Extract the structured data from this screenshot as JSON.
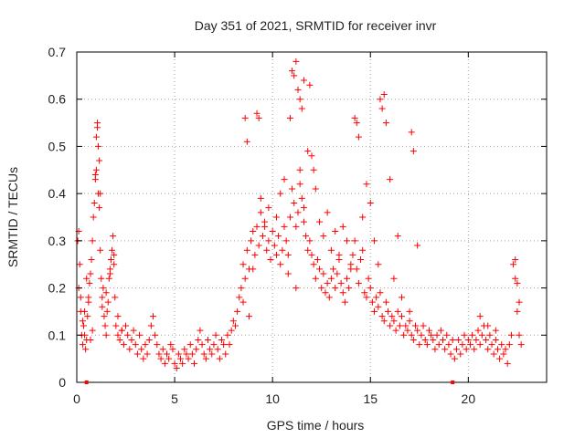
{
  "chart_data": {
    "type": "scatter",
    "title": "Day 351 of 2021, SRMTID for receiver invr",
    "xlabel": "GPS time / hours",
    "ylabel": "SRMTID / TECUs",
    "xlim": [
      0,
      24
    ],
    "ylim": [
      0,
      0.7
    ],
    "x_ticks": [
      0,
      5,
      10,
      15,
      20
    ],
    "y_ticks": [
      0,
      0.1,
      0.2,
      0.3,
      0.4,
      0.5,
      0.6,
      0.7
    ],
    "x_tick_labels": [
      "0",
      "5",
      "10",
      "15",
      "20"
    ],
    "y_tick_labels": [
      "0",
      "0.1",
      "0.2",
      "0.3",
      "0.4",
      "0.5",
      "0.6",
      "0.7"
    ],
    "grid": true,
    "marker": "+",
    "color": "#ff0000",
    "gap_markers_x": [
      0.5,
      19.2
    ],
    "series": [
      {
        "name": "SRMTID",
        "x": [
          0.05,
          0.1,
          0.15,
          0.2,
          0.25,
          0.3,
          0.35,
          0.4,
          0.45,
          0.5,
          0.55,
          0.6,
          0.65,
          0.7,
          0.75,
          0.8,
          0.85,
          0.9,
          0.95,
          1.0,
          1.05,
          1.1,
          1.15,
          1.2,
          1.25,
          1.3,
          1.35,
          1.4,
          1.45,
          1.5,
          1.55,
          1.6,
          1.65,
          1.7,
          1.75,
          1.8,
          1.85,
          1.9,
          1.95,
          2.0,
          2.1,
          2.2,
          2.3,
          2.4,
          2.5,
          2.6,
          2.7,
          2.8,
          2.9,
          3.0,
          3.1,
          3.2,
          3.3,
          3.4,
          3.5,
          3.6,
          3.7,
          3.8,
          3.9,
          4.0,
          4.1,
          4.2,
          4.3,
          4.4,
          4.5,
          4.6,
          4.7,
          4.8,
          4.9,
          5.0,
          5.1,
          5.2,
          5.3,
          5.4,
          5.5,
          5.6,
          5.7,
          5.8,
          5.9,
          6.0,
          6.1,
          6.2,
          6.3,
          6.4,
          6.5,
          6.6,
          6.7,
          6.8,
          6.9,
          7.0,
          7.1,
          7.2,
          7.3,
          7.4,
          7.5,
          7.6,
          7.7,
          7.8,
          7.9,
          8.0,
          8.1,
          8.2,
          8.3,
          8.4,
          8.5,
          8.6,
          8.7,
          8.8,
          8.9,
          9.0,
          9.1,
          9.2,
          9.3,
          9.4,
          9.5,
          9.6,
          9.7,
          9.8,
          9.9,
          10.0,
          10.1,
          10.2,
          10.3,
          10.4,
          10.5,
          10.6,
          10.7,
          10.8,
          10.9,
          11.0,
          11.1,
          11.2,
          11.3,
          11.4,
          11.5,
          11.6,
          11.7,
          11.8,
          11.9,
          12.0,
          12.1,
          12.2,
          12.3,
          12.4,
          12.5,
          12.6,
          12.7,
          12.8,
          12.9,
          13.0,
          13.1,
          13.2,
          13.3,
          13.4,
          13.5,
          13.6,
          13.7,
          13.8,
          13.9,
          14.0,
          14.1,
          14.2,
          14.3,
          14.4,
          14.5,
          14.6,
          14.7,
          14.8,
          14.9,
          15.0,
          15.1,
          15.2,
          15.3,
          15.4,
          15.5,
          15.6,
          15.7,
          15.8,
          15.9,
          16.0,
          16.1,
          16.2,
          16.3,
          16.4,
          16.5,
          16.6,
          16.7,
          16.8,
          16.9,
          17.0,
          17.1,
          17.2,
          17.3,
          17.4,
          17.5,
          17.6,
          17.7,
          17.8,
          17.9,
          18.0,
          18.1,
          18.2,
          18.3,
          18.4,
          18.5,
          18.6,
          18.7,
          18.8,
          18.9,
          19.0,
          19.1,
          19.2,
          19.3,
          19.4,
          19.5,
          19.6,
          19.7,
          19.8,
          19.9,
          20.0,
          20.1,
          20.2,
          20.3,
          20.4,
          20.5,
          20.6,
          20.7,
          20.8,
          20.9,
          21.0,
          21.1,
          21.2,
          21.3,
          21.4,
          21.5,
          21.6,
          21.7,
          21.8,
          21.9,
          22.0,
          22.1,
          22.2,
          22.3,
          22.4,
          22.5,
          22.6,
          22.7,
          1.05,
          1.1,
          1.15,
          1.2,
          0.95,
          1.0,
          11.0,
          11.1,
          11.2,
          11.3,
          11.4,
          11.5,
          11.6,
          10.9,
          14.2,
          14.3,
          14.4,
          15.5,
          15.6,
          15.7,
          15.8,
          17.1,
          17.2,
          8.6,
          8.7,
          9.2,
          9.3,
          11.9,
          12.0,
          12.1,
          0.1,
          0.2,
          0.3,
          0.4,
          0.5,
          0.6,
          0.7,
          0.8,
          1.3,
          1.5,
          1.7,
          1.9,
          2.1,
          2.3,
          8.5,
          8.8,
          9.0,
          9.4,
          9.6,
          9.8,
          10.2,
          10.4,
          10.6,
          10.8,
          11.2,
          11.4,
          11.6,
          11.8,
          12.2,
          12.4,
          12.6,
          12.8,
          13.0,
          13.2,
          13.4,
          13.6,
          13.8,
          14.0,
          14.6,
          14.8,
          15.0,
          15.2,
          15.4,
          16.0,
          16.2,
          16.4,
          16.6,
          17.0,
          17.4,
          22.4,
          22.5,
          22.6,
          20.6,
          21.0,
          21.4
        ],
        "y": [
          0.3,
          0.32,
          0.25,
          0.15,
          0.1,
          0.08,
          0.12,
          0.1,
          0.07,
          0.09,
          0.14,
          0.18,
          0.21,
          0.23,
          0.26,
          0.3,
          0.35,
          0.38,
          0.43,
          0.52,
          0.54,
          0.4,
          0.37,
          0.28,
          0.22,
          0.18,
          0.2,
          0.14,
          0.12,
          0.1,
          0.15,
          0.17,
          0.22,
          0.24,
          0.26,
          0.28,
          0.31,
          0.25,
          0.18,
          0.12,
          0.1,
          0.09,
          0.11,
          0.08,
          0.12,
          0.1,
          0.07,
          0.09,
          0.11,
          0.08,
          0.06,
          0.1,
          0.07,
          0.05,
          0.08,
          0.06,
          0.09,
          0.12,
          0.14,
          0.1,
          0.08,
          0.06,
          0.05,
          0.07,
          0.04,
          0.06,
          0.05,
          0.08,
          0.07,
          0.04,
          0.03,
          0.06,
          0.05,
          0.04,
          0.07,
          0.06,
          0.05,
          0.08,
          0.06,
          0.04,
          0.07,
          0.09,
          0.11,
          0.08,
          0.06,
          0.05,
          0.09,
          0.07,
          0.06,
          0.08,
          0.1,
          0.07,
          0.05,
          0.09,
          0.08,
          0.06,
          0.1,
          0.08,
          0.11,
          0.13,
          0.12,
          0.15,
          0.18,
          0.2,
          0.25,
          0.22,
          0.28,
          0.24,
          0.3,
          0.32,
          0.27,
          0.33,
          0.29,
          0.36,
          0.31,
          0.34,
          0.28,
          0.3,
          0.26,
          0.32,
          0.29,
          0.27,
          0.31,
          0.25,
          0.28,
          0.33,
          0.3,
          0.27,
          0.35,
          0.41,
          0.38,
          0.33,
          0.36,
          0.42,
          0.39,
          0.34,
          0.31,
          0.28,
          0.3,
          0.27,
          0.25,
          0.22,
          0.26,
          0.24,
          0.2,
          0.23,
          0.19,
          0.21,
          0.18,
          0.22,
          0.24,
          0.2,
          0.23,
          0.26,
          0.21,
          0.19,
          0.17,
          0.22,
          0.2,
          0.25,
          0.27,
          0.3,
          0.24,
          0.21,
          0.26,
          0.28,
          0.19,
          0.18,
          0.22,
          0.2,
          0.17,
          0.15,
          0.18,
          0.16,
          0.19,
          0.14,
          0.13,
          0.17,
          0.15,
          0.12,
          0.14,
          0.13,
          0.11,
          0.15,
          0.12,
          0.14,
          0.1,
          0.12,
          0.11,
          0.13,
          0.1,
          0.09,
          0.12,
          0.11,
          0.08,
          0.1,
          0.12,
          0.09,
          0.08,
          0.11,
          0.1,
          0.09,
          0.07,
          0.1,
          0.08,
          0.11,
          0.09,
          0.07,
          0.1,
          0.08,
          0.06,
          0.09,
          0.05,
          0.07,
          0.09,
          0.06,
          0.08,
          0.1,
          0.07,
          0.09,
          0.08,
          0.1,
          0.07,
          0.09,
          0.11,
          0.08,
          0.1,
          0.12,
          0.09,
          0.07,
          0.1,
          0.08,
          0.06,
          0.09,
          0.07,
          0.05,
          0.08,
          0.06,
          0.07,
          0.04,
          0.08,
          0.1,
          0.25,
          0.22,
          0.15,
          0.1,
          0.08,
          0.55,
          0.5,
          0.47,
          0.4,
          0.44,
          0.45,
          0.66,
          0.65,
          0.68,
          0.62,
          0.6,
          0.58,
          0.64,
          0.56,
          0.56,
          0.55,
          0.52,
          0.6,
          0.58,
          0.61,
          0.55,
          0.53,
          0.49,
          0.56,
          0.51,
          0.57,
          0.56,
          0.63,
          0.48,
          0.45,
          0.2,
          0.18,
          0.13,
          0.15,
          0.22,
          0.17,
          0.09,
          0.11,
          0.16,
          0.19,
          0.23,
          0.27,
          0.14,
          0.11,
          0.17,
          0.14,
          0.24,
          0.39,
          0.33,
          0.37,
          0.35,
          0.4,
          0.43,
          0.23,
          0.2,
          0.45,
          0.37,
          0.49,
          0.41,
          0.34,
          0.31,
          0.36,
          0.28,
          0.32,
          0.27,
          0.33,
          0.3,
          0.24,
          0.35,
          0.42,
          0.38,
          0.3,
          0.25,
          0.43,
          0.22,
          0.31,
          0.18,
          0.15,
          0.29,
          0.26,
          0.21,
          0.17,
          0.14,
          0.12,
          0.11
        ]
      }
    ]
  }
}
